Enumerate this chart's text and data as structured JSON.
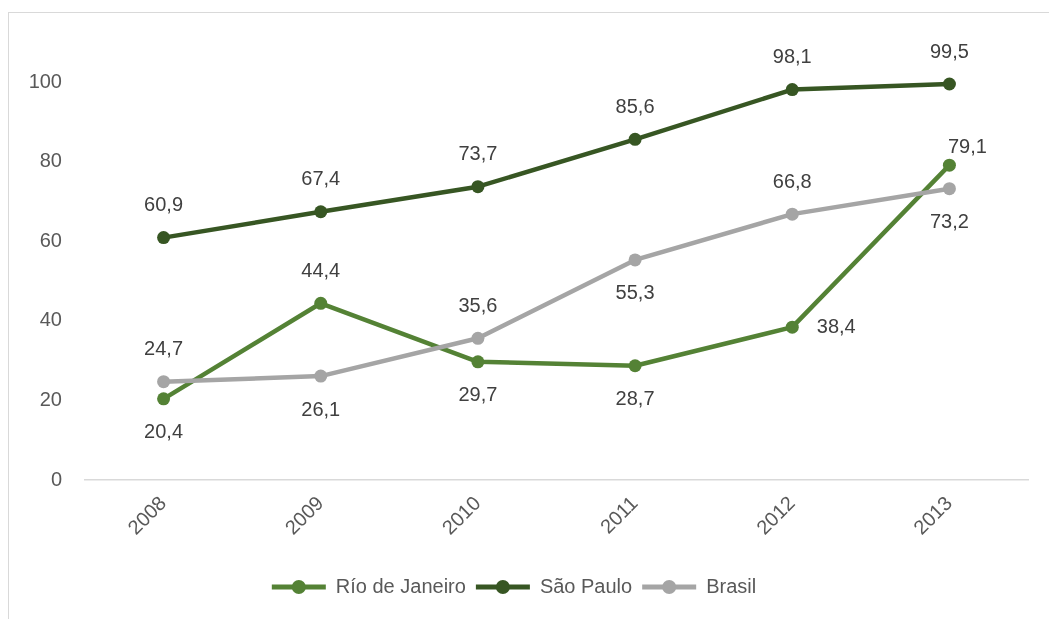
{
  "chart_data": {
    "type": "line",
    "categories": [
      "2008",
      "2009",
      "2010",
      "2011",
      "2012",
      "2013"
    ],
    "series": [
      {
        "name": "Río de Janeiro",
        "color": "#548235",
        "values": [
          20.4,
          44.4,
          29.7,
          28.7,
          38.4,
          79.1
        ],
        "value_labels": [
          "20,4",
          "44,4",
          "29,7",
          "28,7",
          "38,4",
          "79,1"
        ]
      },
      {
        "name": "São Paulo",
        "color": "#375623",
        "values": [
          60.9,
          67.4,
          73.7,
          85.6,
          98.1,
          99.5
        ],
        "value_labels": [
          "60,9",
          "67,4",
          "73,7",
          "85,6",
          "98,1",
          "99,5"
        ]
      },
      {
        "name": "Brasil",
        "color": "#a5a5a5",
        "values": [
          24.7,
          26.1,
          35.6,
          55.3,
          66.8,
          73.2
        ],
        "value_labels": [
          "24,7",
          "26,1",
          "35,6",
          "55,3",
          "66,8",
          "73,2"
        ]
      }
    ],
    "ylim": [
      0,
      100
    ],
    "yticks": [
      0,
      20,
      40,
      60,
      80,
      100
    ],
    "grid": false,
    "legend": "bottom",
    "marker": "circle",
    "line_style": "solid"
  }
}
